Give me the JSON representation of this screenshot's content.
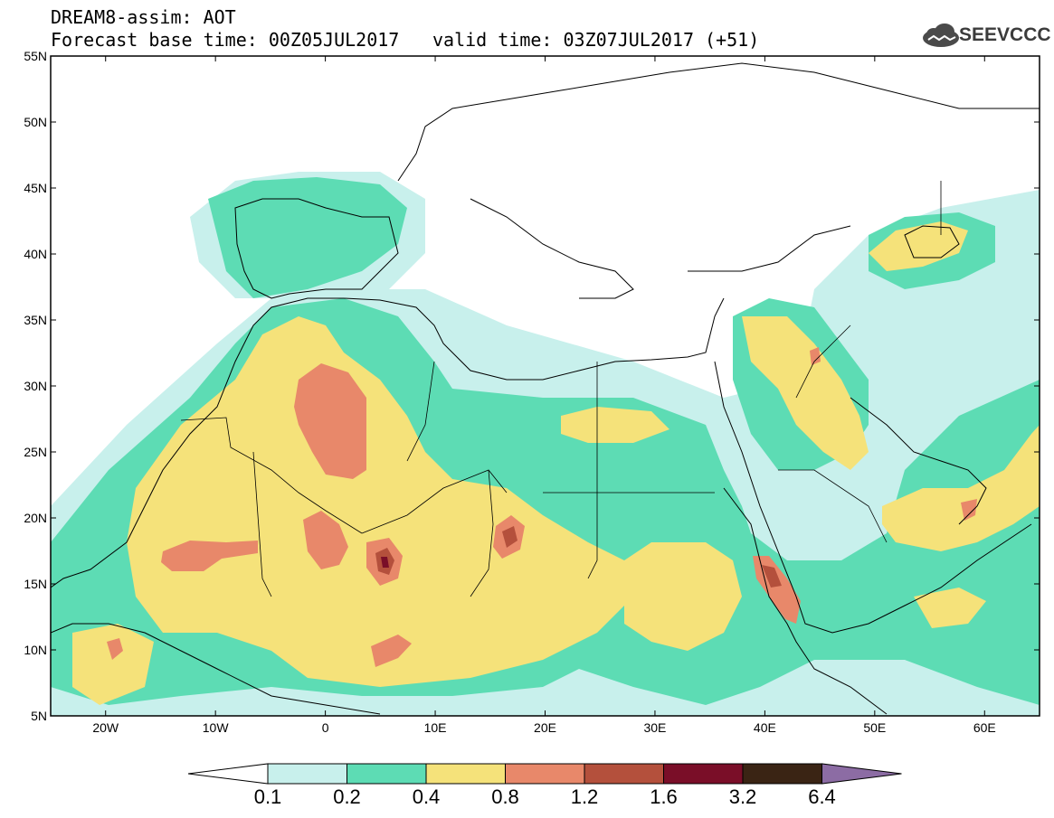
{
  "header": {
    "title": "DREAM8-assim: AOT",
    "base_time": "Forecast base time: 00Z05JUL2017",
    "valid_time": "valid time: 03Z07JUL2017 (+51)",
    "logo_text": "SEEVCCC"
  },
  "map": {
    "projection": "equirectangular",
    "lon_range": [
      -25,
      65
    ],
    "lat_range": [
      5,
      55
    ],
    "lon_ticks": [
      "20W",
      "10W",
      "0",
      "10E",
      "20E",
      "30E",
      "40E",
      "50E",
      "60E"
    ],
    "lat_ticks": [
      "55N",
      "50N",
      "45N",
      "40N",
      "35N",
      "30N",
      "25N",
      "20N",
      "15N",
      "10N",
      "5N"
    ],
    "variable": "AOT"
  },
  "colorbar": {
    "levels": [
      "0.1",
      "0.2",
      "0.4",
      "0.8",
      "1.2",
      "1.6",
      "3.2",
      "6.4"
    ],
    "colors": {
      "c0": "#c8f0ec",
      "c1": "#5ddcb4",
      "c2": "#f5e27a",
      "c3": "#e8886a",
      "c4": "#b4503c",
      "c5": "#7a0e28",
      "c6": "#3a2414",
      "c7": "#8c6ca4"
    }
  }
}
